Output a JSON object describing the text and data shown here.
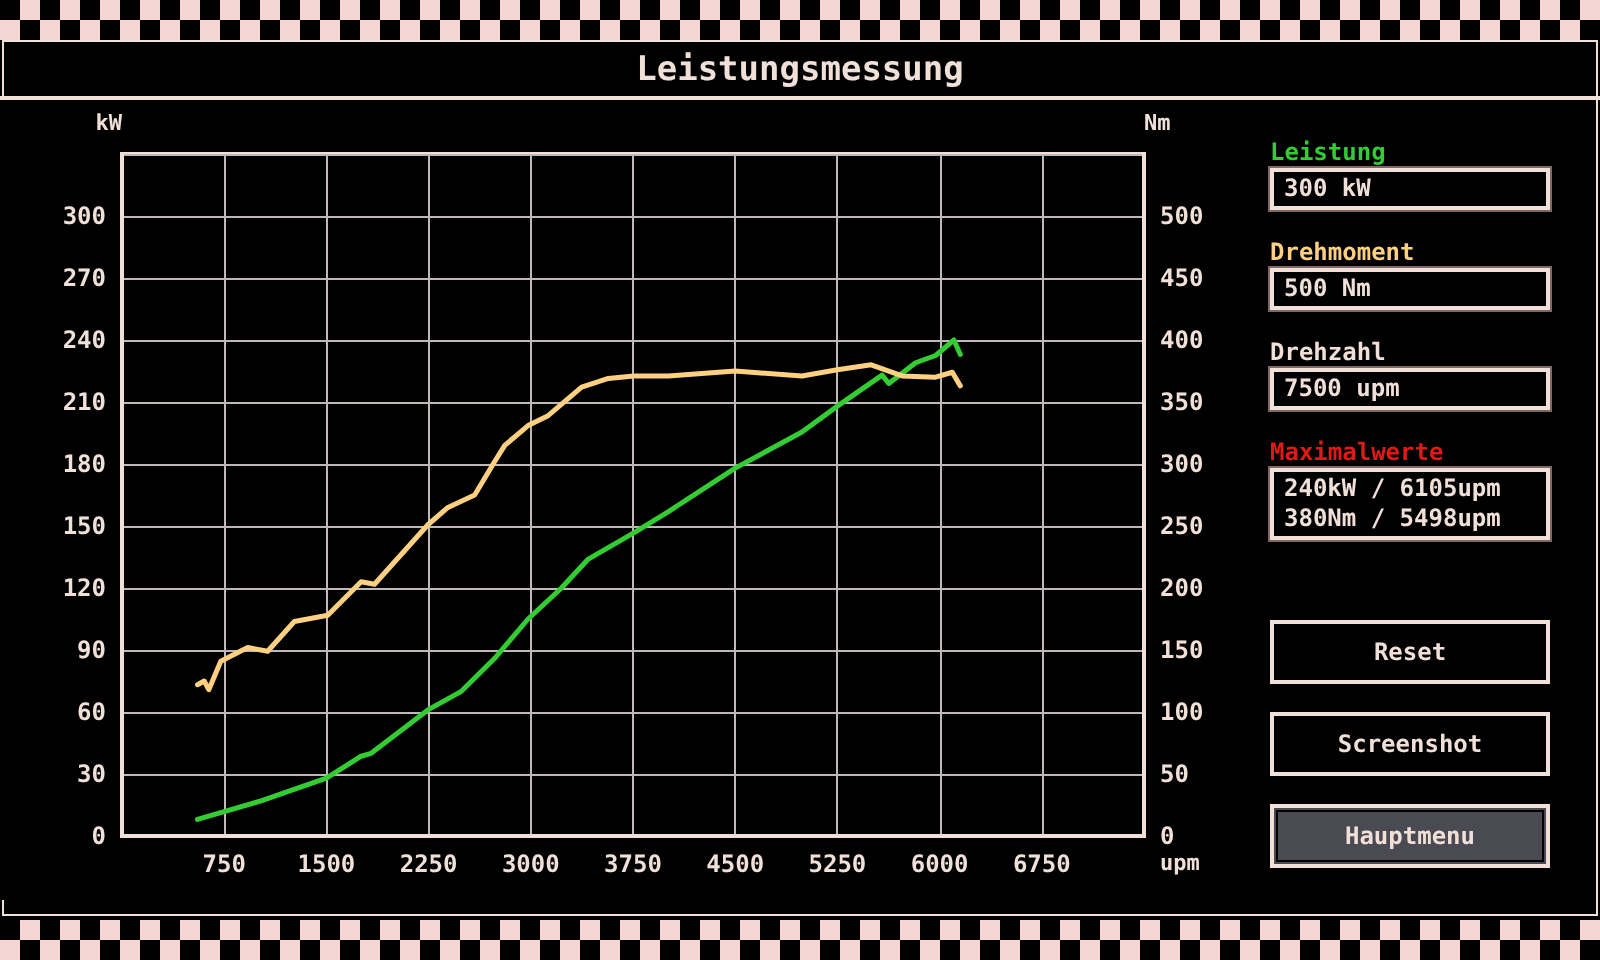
{
  "chart_data": {
    "type": "line",
    "title": "Leistungsmessung",
    "xlabel": "upm",
    "ylabel": "kW",
    "y2label": "Nm",
    "xlim": [
      0,
      7500
    ],
    "xticks": [
      750,
      1500,
      2250,
      3000,
      3750,
      4500,
      5250,
      6000,
      6750
    ],
    "ylim": [
      0,
      330
    ],
    "yticks": [
      0,
      30,
      60,
      90,
      120,
      150,
      180,
      210,
      240,
      270,
      300
    ],
    "y2lim": [
      0,
      550
    ],
    "y2ticks": [
      0,
      50,
      100,
      150,
      200,
      250,
      300,
      350,
      400,
      450,
      500
    ],
    "grid": true,
    "legend": "right",
    "marker": "none",
    "line_style": "solid",
    "series": [
      {
        "name": "Leistung",
        "color": "#33cc33",
        "x": [
          554,
          1020,
          1500,
          1755,
          1828,
          2245,
          2490,
          2735,
          2980,
          3225,
          3422,
          3765,
          4010,
          4500,
          4990,
          5250,
          5578,
          5627,
          5824,
          5971,
          6105,
          6152
        ],
        "values": [
          8,
          17,
          28,
          38.6,
          40,
          61,
          70,
          86,
          105,
          120,
          134,
          147,
          157,
          178,
          195.5,
          208,
          223,
          219,
          229,
          232.5,
          240,
          233
        ]
      },
      {
        "name": "Drehmoment",
        "color": "#ffd080",
        "axis": "y2",
        "x": [
          554,
          603,
          637,
          725,
          922,
          1069,
          1265,
          1510,
          1755,
          1853,
          2245,
          2392,
          2588,
          2735,
          2809,
          2980,
          3127,
          3373,
          3569,
          3755,
          4010,
          4500,
          4990,
          5250,
          5498,
          5725,
          5971,
          6093,
          6152
        ],
        "values": [
          122,
          125,
          118,
          141,
          152,
          149,
          173,
          178,
          205,
          203,
          251,
          265,
          275,
          302,
          315,
          331,
          339,
          362,
          369,
          371,
          371,
          375,
          371,
          376,
          380,
          371,
          370,
          374,
          363
        ]
      }
    ],
    "annotations": [
      "300 kW",
      "500 Nm",
      "Drehzahl",
      "7500 upm",
      "Maximalwerte",
      "240kW / 6105upm",
      "380Nm / 5498upm",
      "Reset",
      "Screenshot",
      "Hauptmenu"
    ]
  }
}
